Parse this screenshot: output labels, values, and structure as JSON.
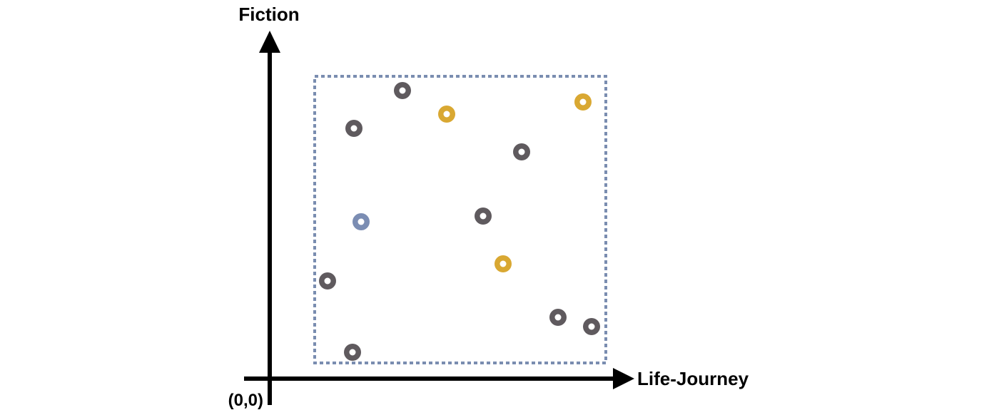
{
  "diagram": {
    "y_axis_label": "Fiction",
    "x_axis_label": "Life-Journey",
    "origin_label": "(0,0)",
    "colors": {
      "axis": "#000000",
      "box_border": "#7a8db0",
      "dark": "#5f5a5e",
      "gold": "#d9a832",
      "blue": "#7b8db3"
    },
    "points": [
      {
        "color": "dark"
      },
      {
        "color": "gold"
      },
      {
        "color": "gold"
      },
      {
        "color": "dark"
      },
      {
        "color": "dark"
      },
      {
        "color": "blue"
      },
      {
        "color": "dark"
      },
      {
        "color": "gold"
      },
      {
        "color": "dark"
      },
      {
        "color": "dark"
      },
      {
        "color": "dark"
      },
      {
        "color": "dark"
      }
    ]
  }
}
